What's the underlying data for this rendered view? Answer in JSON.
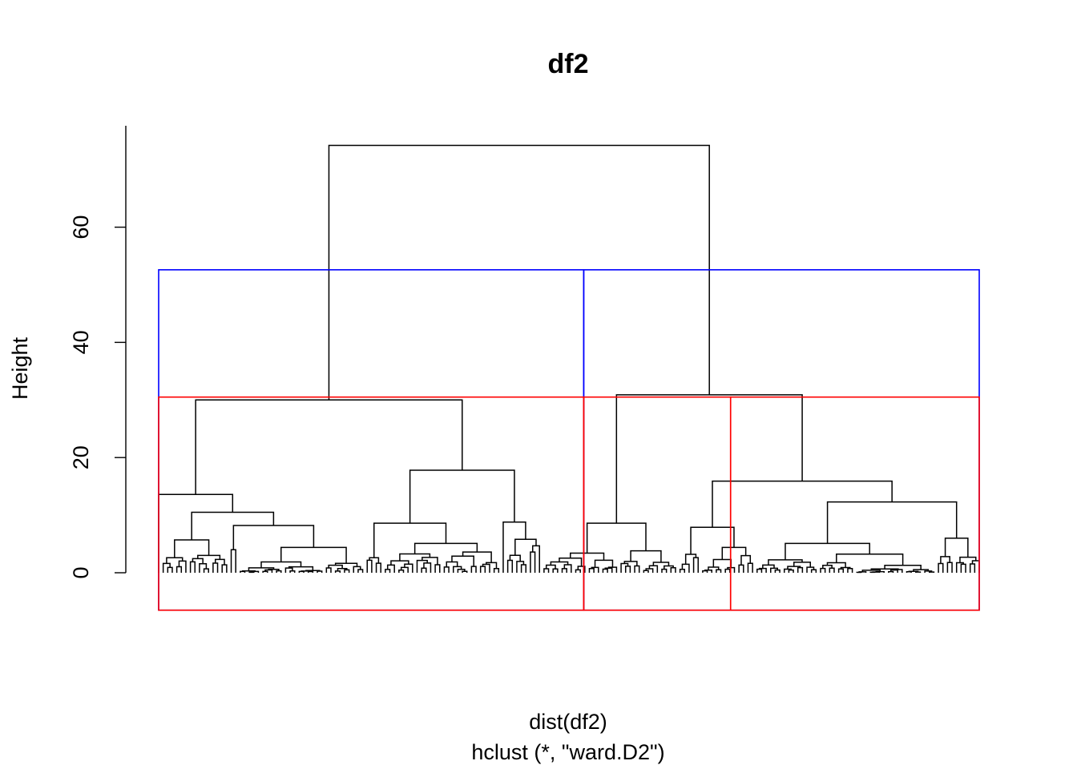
{
  "chart_data": {
    "type": "dendrogram",
    "title": "df2",
    "xlabel": "dist(df2)",
    "sublabel": "hclust (*, \"ward.D2\")",
    "ylabel": "Height",
    "ylim": [
      0,
      78
    ],
    "yticks": [
      0,
      20,
      40,
      60
    ],
    "colors": {
      "tree": "#000000",
      "outer_boxes": "#0000ff",
      "inner_boxes": "#ff0000"
    },
    "merges": [
      {
        "name": "root",
        "height": 74.2
      },
      {
        "name": "left-group",
        "height": 30.0
      },
      {
        "name": "right-group",
        "height": 30.9
      },
      {
        "name": "left-a",
        "height": 13.6
      },
      {
        "name": "left-b",
        "height": 17.8
      },
      {
        "name": "right-b",
        "height": 15.9
      },
      {
        "name": "left-a-2",
        "height": 10.5
      },
      {
        "name": "left-a-2-2",
        "height": 8.2
      },
      {
        "name": "left-b-1",
        "height": 8.6
      },
      {
        "name": "left-b-2",
        "height": 8.8
      },
      {
        "name": "right-a",
        "height": 8.6
      },
      {
        "name": "right-b-1",
        "height": 7.9
      },
      {
        "name": "right-b-2",
        "height": 12.3
      }
    ],
    "cut_levels": [
      {
        "k": 2,
        "height": 52.6,
        "color": "#0000ff",
        "boxes": [
          [
            0.0,
            0.518
          ],
          [
            0.518,
            1.0
          ]
        ]
      },
      {
        "k": 3,
        "height": 30.5,
        "color": "#ff0000",
        "boxes": [
          [
            0.0,
            0.518
          ],
          [
            0.518,
            0.697
          ],
          [
            0.697,
            1.0
          ]
        ]
      }
    ],
    "box_bottom": -6.5
  }
}
